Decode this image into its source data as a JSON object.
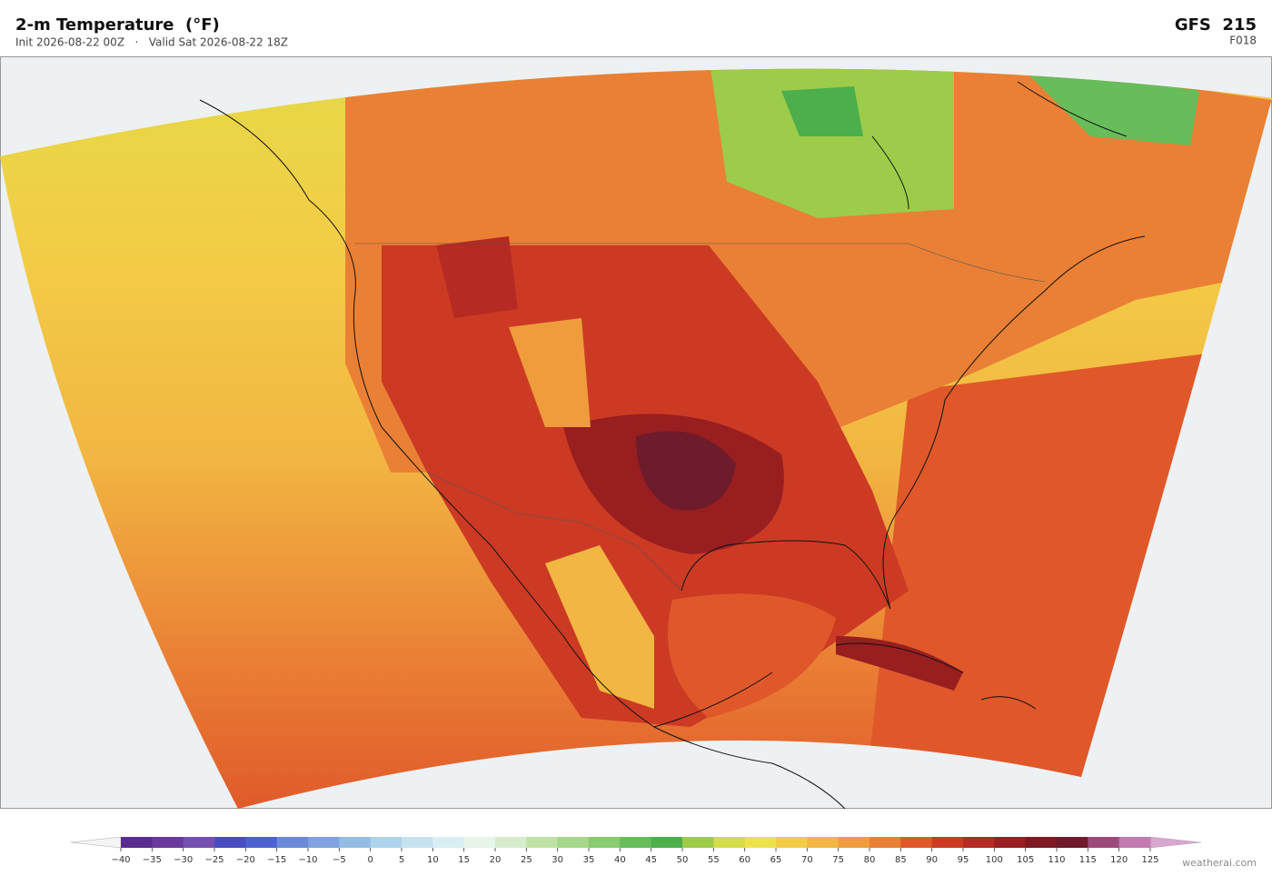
{
  "header": {
    "title": "2-m Temperature  (°F)",
    "subtitle": "Init 2026-08-22 00Z   ·   Valid Sat 2026-08-22 18Z",
    "model": "GFS  215",
    "forecast_hour": "F018"
  },
  "colorbar": {
    "range": [
      -40,
      125
    ],
    "ticks": [
      {
        "value": -40,
        "label": "−40"
      },
      {
        "value": -35,
        "label": "−35"
      },
      {
        "value": -30,
        "label": "−30"
      },
      {
        "value": -25,
        "label": "−25"
      },
      {
        "value": -20,
        "label": "−20"
      },
      {
        "value": -15,
        "label": "−15"
      },
      {
        "value": -10,
        "label": "−10"
      },
      {
        "value": -5,
        "label": "−5"
      },
      0,
      5,
      10,
      15,
      20,
      25,
      30,
      35,
      40,
      45,
      50,
      55,
      60,
      65,
      70,
      75,
      80,
      85,
      90,
      95,
      100,
      105,
      110,
      115,
      120,
      125
    ],
    "colors": [
      "#5b2c8f",
      "#6a3a9a",
      "#7550b0",
      "#4a4dc0",
      "#4c63cf",
      "#6a8ad8",
      "#7fa3de",
      "#94bde5",
      "#add3ec",
      "#c5e2f0",
      "#d9eef3",
      "#e6f4ea",
      "#d6eccb",
      "#bfe3a5",
      "#a5d88a",
      "#87cc6e",
      "#66bd5a",
      "#4caf4c",
      "#9ccc4a",
      "#d4dc48",
      "#ece34a",
      "#f3cc46",
      "#f2b642",
      "#ef9d3c",
      "#ea8035",
      "#e0582a",
      "#cc3a24",
      "#b52a22",
      "#981e20",
      "#7d1a22",
      "#6e1b2c",
      "#9c4a7a",
      "#c27ab0"
    ],
    "under_color": "#f4f4f6",
    "over_color": "#d9a6d0"
  },
  "footer": {
    "credit": "weatherai.com"
  }
}
